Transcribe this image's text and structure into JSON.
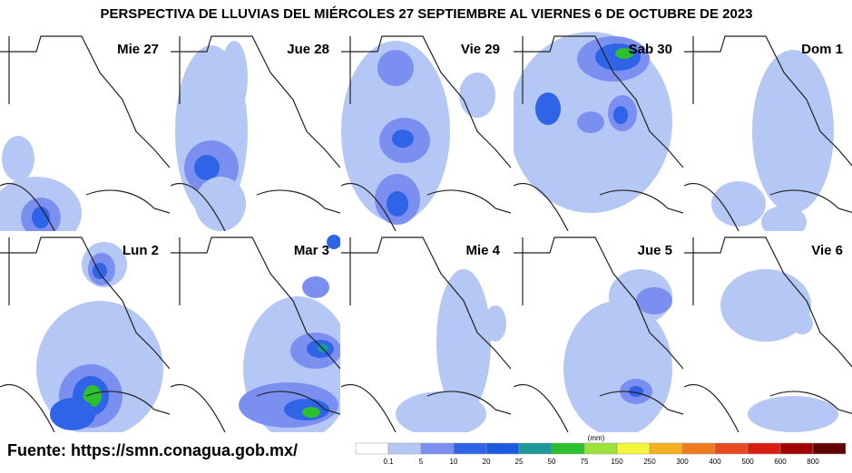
{
  "title": "PERSPECTIVA DE LLUVIAS DEL MIÉRCOLES 27 SEPTIEMBRE AL VIERNES 6 DE OCTUBRE DE 2023",
  "panels": [
    {
      "label": "Mie 27"
    },
    {
      "label": "Jue 28"
    },
    {
      "label": "Vie 29"
    },
    {
      "label": "Sab 30"
    },
    {
      "label": "Dom 1"
    },
    {
      "label": "Lun 2"
    },
    {
      "label": "Mar 3"
    },
    {
      "label": "Mie 4"
    },
    {
      "label": "Jue 5"
    },
    {
      "label": "Vie 6"
    }
  ],
  "source": "Fuente: https://smn.conagua.gob.mx/",
  "legend": {
    "unit": "(mm)",
    "labels": [
      "0.1",
      "5",
      "10",
      "20",
      "25",
      "50",
      "75",
      "150",
      "250",
      "300",
      "400",
      "500",
      "600",
      "800"
    ],
    "colors": [
      "#ffffff",
      "#b5c7f5",
      "#7b8ff0",
      "#2f63e8",
      "#1a5ae0",
      "#1a9a9a",
      "#2cc02e",
      "#9be33b",
      "#f5f53a",
      "#f5b020",
      "#f07a20",
      "#e84a20",
      "#d81e10",
      "#a00000",
      "#600000"
    ]
  }
}
